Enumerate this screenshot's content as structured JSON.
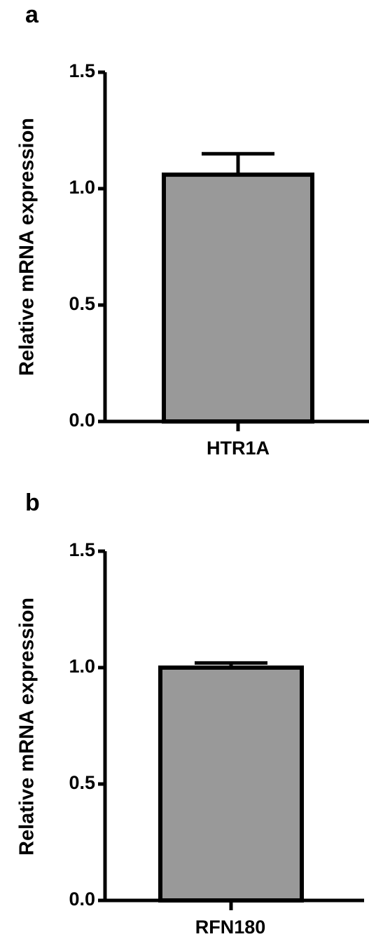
{
  "chart_data": [
    {
      "type": "bar",
      "panel_label": "a",
      "categories": [
        "HTR1A"
      ],
      "values": [
        1.06
      ],
      "error": [
        0.09
      ],
      "ylabel": "Relative mRNA expression",
      "ylim": [
        0,
        1.5
      ],
      "yticks": [
        "0.0",
        "0.5",
        "1.0",
        "1.5"
      ],
      "bar_color": "#999999",
      "grid": false,
      "legend": "none"
    },
    {
      "type": "bar",
      "panel_label": "b",
      "categories": [
        "RFN180"
      ],
      "values": [
        1.0
      ],
      "error": [
        0.02
      ],
      "ylabel": "Relative mRNA expression",
      "ylim": [
        0,
        1.5
      ],
      "yticks": [
        "0.0",
        "0.5",
        "1.0",
        "1.5"
      ],
      "bar_color": "#999999",
      "grid": false,
      "legend": "none"
    }
  ]
}
